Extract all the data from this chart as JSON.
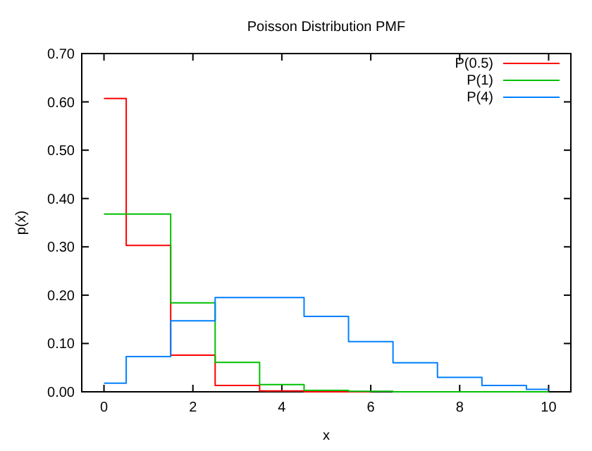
{
  "chart_data": {
    "type": "step",
    "title": "Poisson Distribution PMF",
    "xlabel": "x",
    "ylabel": "p(x)",
    "x": [
      0,
      1,
      2,
      3,
      4,
      5,
      6,
      7,
      8,
      9,
      10
    ],
    "series": [
      {
        "name": "P(0.5)",
        "color": "#ff0000",
        "values": [
          0.607,
          0.303,
          0.076,
          0.013,
          0.002,
          0.0,
          0.0,
          null,
          null,
          null,
          null
        ]
      },
      {
        "name": "P(1)",
        "color": "#00c000",
        "values": [
          0.368,
          0.368,
          0.184,
          0.061,
          0.015,
          0.003,
          0.001,
          0.0,
          0.0,
          0.0,
          0.0
        ]
      },
      {
        "name": "P(4)",
        "color": "#0080ff",
        "values": [
          0.018,
          0.073,
          0.147,
          0.195,
          0.195,
          0.156,
          0.104,
          0.06,
          0.03,
          0.013,
          0.005
        ]
      }
    ],
    "xlim": [
      -0.5,
      10.5
    ],
    "xticks": [
      0,
      2,
      4,
      6,
      8,
      10
    ],
    "ylim": [
      0,
      0.7
    ],
    "yticks": [
      {
        "value": 0,
        "label": "0.00"
      },
      {
        "value": 0.1,
        "label": "0.10"
      },
      {
        "value": 0.2,
        "label": "0.20"
      },
      {
        "value": 0.3,
        "label": "0.30"
      },
      {
        "value": 0.4,
        "label": "0.40"
      },
      {
        "value": 0.5,
        "label": "0.50"
      },
      {
        "value": 0.6,
        "label": "0.60"
      },
      {
        "value": 0.7,
        "label": "0.70"
      }
    ],
    "legend": "top right"
  }
}
